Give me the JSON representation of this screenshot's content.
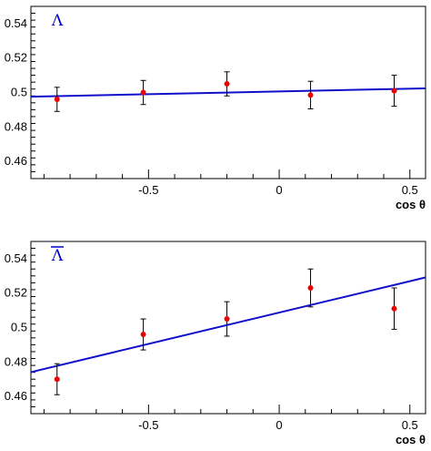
{
  "chart_data": [
    {
      "type": "scatter",
      "title": "Λ",
      "title_overline": false,
      "xlabel": "cos θ",
      "ylabel": "",
      "xlim": [
        -0.95,
        0.56
      ],
      "ylim": [
        0.45,
        0.55
      ],
      "xticks": [
        -0.5,
        0,
        0.5
      ],
      "xtick_labels": [
        "-0.5",
        "0",
        "0.5"
      ],
      "yticks": [
        0.46,
        0.48,
        0.5,
        0.52,
        0.54
      ],
      "ytick_labels": [
        "0.46",
        "0.48",
        "0.5",
        "0.52",
        "0.54"
      ],
      "grid": false,
      "points": [
        {
          "x": -0.85,
          "y": 0.496,
          "err": 0.007
        },
        {
          "x": -0.52,
          "y": 0.5,
          "err": 0.007
        },
        {
          "x": -0.2,
          "y": 0.505,
          "err": 0.007
        },
        {
          "x": 0.12,
          "y": 0.4985,
          "err": 0.008
        },
        {
          "x": 0.44,
          "y": 0.501,
          "err": 0.009
        }
      ],
      "fit_line": {
        "slope": 0.0032,
        "intercept": 0.5006
      },
      "colors": {
        "points": "#ee0000",
        "fit": "#1010cc",
        "errorbars": "#000000",
        "title": "#0000cc"
      }
    },
    {
      "type": "scatter",
      "title": "Λ",
      "title_overline": true,
      "xlabel": "cos θ",
      "ylabel": "",
      "xlim": [
        -0.95,
        0.56
      ],
      "ylim": [
        0.45,
        0.55
      ],
      "xticks": [
        -0.5,
        0,
        0.5
      ],
      "xtick_labels": [
        "-0.5",
        "0",
        "0.5"
      ],
      "yticks": [
        0.46,
        0.48,
        0.5,
        0.52,
        0.54
      ],
      "ytick_labels": [
        "0.46",
        "0.48",
        "0.5",
        "0.52",
        "0.54"
      ],
      "grid": false,
      "points": [
        {
          "x": -0.85,
          "y": 0.47,
          "err": 0.009
        },
        {
          "x": -0.52,
          "y": 0.496,
          "err": 0.009
        },
        {
          "x": -0.2,
          "y": 0.505,
          "err": 0.01
        },
        {
          "x": 0.12,
          "y": 0.523,
          "err": 0.011
        },
        {
          "x": 0.44,
          "y": 0.511,
          "err": 0.012
        }
      ],
      "fit_line": {
        "slope": 0.0364,
        "intercept": 0.5087
      },
      "colors": {
        "points": "#ee0000",
        "fit": "#1010cc",
        "errorbars": "#000000",
        "title": "#0000cc"
      }
    }
  ]
}
